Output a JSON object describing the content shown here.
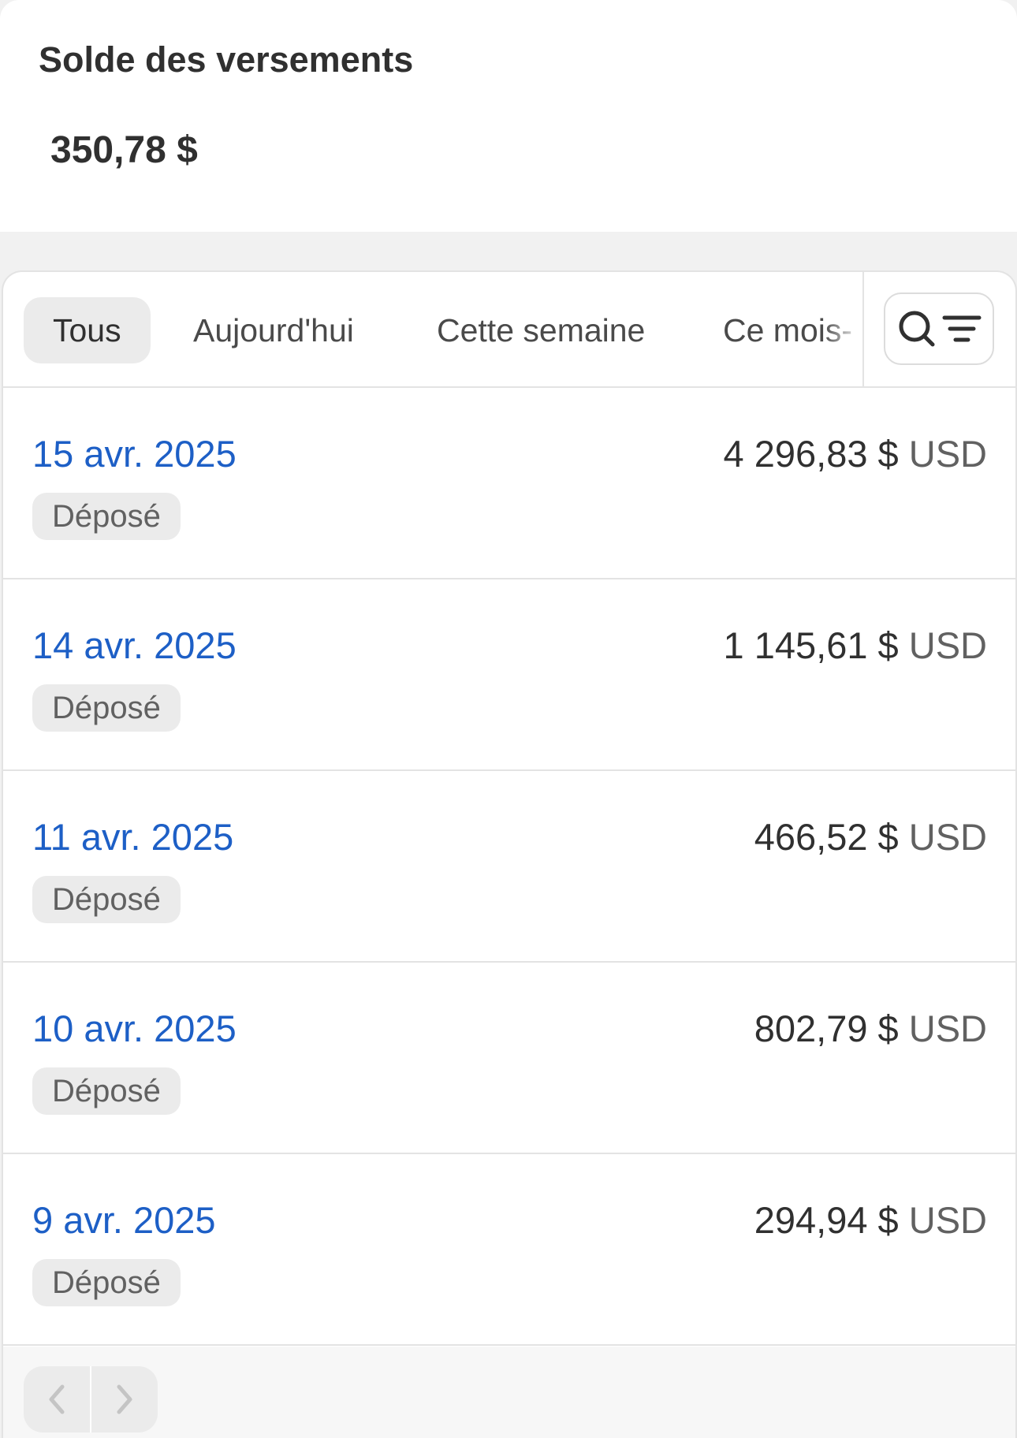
{
  "header": {
    "title": "Solde des versements",
    "balance": "350,78 $"
  },
  "tabs": [
    {
      "label": "Tous",
      "active": true
    },
    {
      "label": "Aujourd'hui",
      "active": false
    },
    {
      "label": "Cette semaine",
      "active": false
    },
    {
      "label": "Ce mois-",
      "active": false
    }
  ],
  "search_filter_icon": "search-filter-icon",
  "payouts": [
    {
      "date": "15 avr. 2025",
      "amount": "4 296,83 $",
      "currency": "USD",
      "status": "Déposé"
    },
    {
      "date": "14 avr. 2025",
      "amount": "1 145,61 $",
      "currency": "USD",
      "status": "Déposé"
    },
    {
      "date": "11 avr. 2025",
      "amount": "466,52 $",
      "currency": "USD",
      "status": "Déposé"
    },
    {
      "date": "10 avr. 2025",
      "amount": "802,79 $",
      "currency": "USD",
      "status": "Déposé"
    },
    {
      "date": "9 avr. 2025",
      "amount": "294,94 $",
      "currency": "USD",
      "status": "Déposé"
    }
  ],
  "colors": {
    "link": "#1d5fc6",
    "badge_bg": "#ebebeb",
    "text": "#303030"
  },
  "pagination": {
    "prev_enabled": false,
    "next_enabled": false
  }
}
